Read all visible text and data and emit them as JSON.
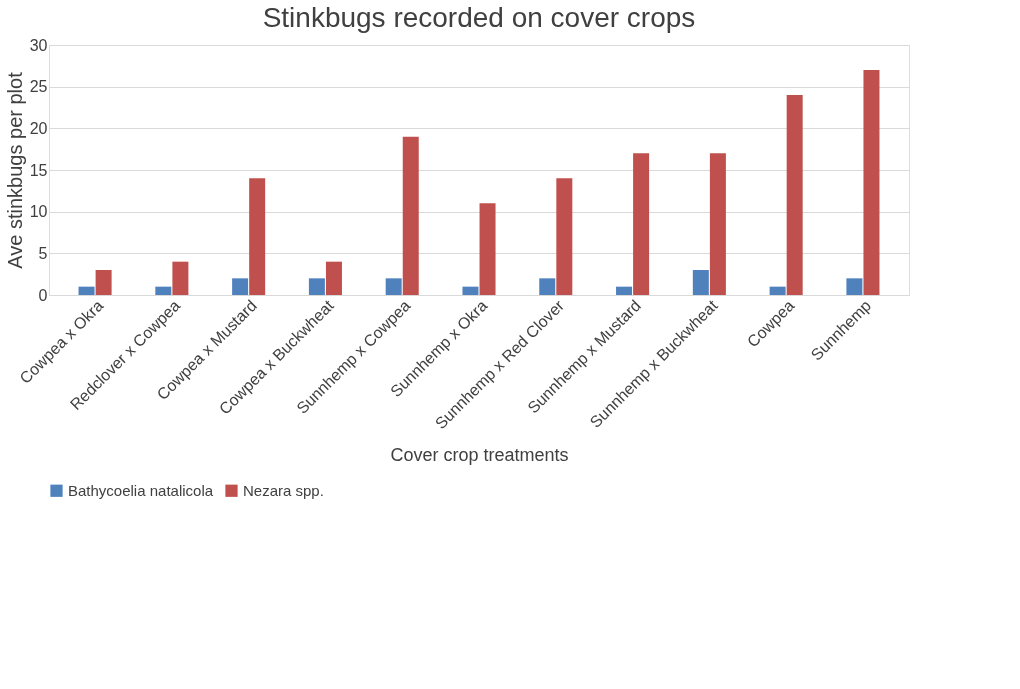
{
  "chart_data": {
    "type": "bar",
    "title": "Stinkbugs recorded on cover crops",
    "xlabel": "Cover crop treatments",
    "ylabel": "Ave stinkbugs per plot",
    "categories": [
      "Cowpea x Okra",
      "Redclover x Cowpea",
      "Cowpea x Mustard",
      "Cowpea x Buckwheat",
      "Sunnhemp x Cowpea",
      "Sunnhemp x Okra",
      "Sunnhemp x Red Clover",
      "Sunnhemp x Mustard",
      "Sunnhemp x Buckwheat",
      "Cowpea",
      "Sunnhemp"
    ],
    "series": [
      {
        "name": "Bathycoelia natalicola",
        "color": "#4f81bd",
        "values": [
          1,
          1,
          2,
          2,
          2,
          1,
          2,
          1,
          3,
          1,
          2
        ]
      },
      {
        "name": "Nezara spp.",
        "color": "#c0504d",
        "values": [
          3,
          4,
          14,
          4,
          19,
          11,
          14,
          17,
          17,
          24,
          27
        ]
      }
    ],
    "ylim": [
      0,
      30
    ],
    "yticks": [
      0,
      5,
      10,
      15,
      20,
      25,
      30
    ],
    "grid": "y",
    "legend": "bottom"
  }
}
